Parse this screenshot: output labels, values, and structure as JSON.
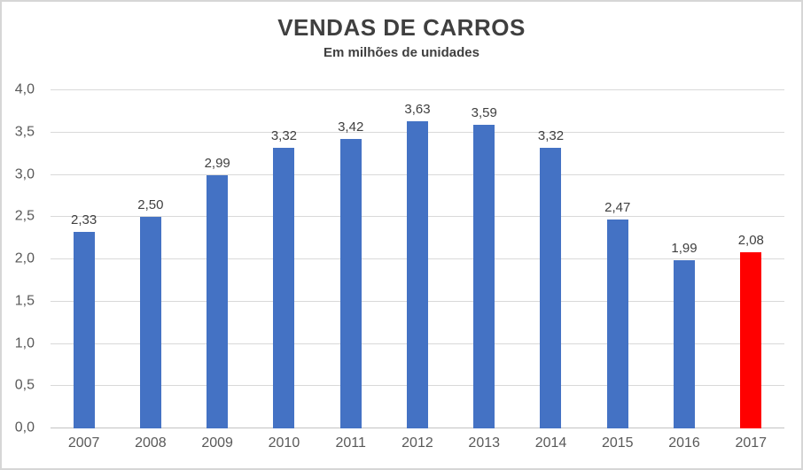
{
  "chart_data": {
    "type": "bar",
    "title": "VENDAS DE CARROS",
    "subtitle": "Em milhões de unidades",
    "categories": [
      "2007",
      "2008",
      "2009",
      "2010",
      "2011",
      "2012",
      "2013",
      "2014",
      "2015",
      "2016",
      "2017"
    ],
    "values": [
      2.33,
      2.5,
      2.99,
      3.32,
      3.42,
      3.63,
      3.59,
      3.32,
      2.47,
      1.99,
      2.08
    ],
    "value_labels": [
      "2,33",
      "2,50",
      "2,99",
      "3,32",
      "3,42",
      "3,63",
      "3,59",
      "3,32",
      "2,47",
      "1,99",
      "2,08"
    ],
    "highlight_index": 10,
    "ylim": [
      0,
      4
    ],
    "ytick_step": 0.5,
    "ytick_labels": [
      "4,0",
      "3,5",
      "3,0",
      "2,5",
      "2,0",
      "1,5",
      "1,0",
      "0,5",
      "0,0"
    ],
    "grid": true,
    "legend": false,
    "decimal_separator": ","
  },
  "colors": {
    "bar": "#4472C4",
    "bar_highlight": "#FF0000",
    "gridline": "#D9D9D9",
    "axis_line": "#C3C3C3",
    "title_text": "#3F3F3F",
    "axis_text": "#595959",
    "value_text": "#404040",
    "frame_border": "#D6D6D6"
  }
}
